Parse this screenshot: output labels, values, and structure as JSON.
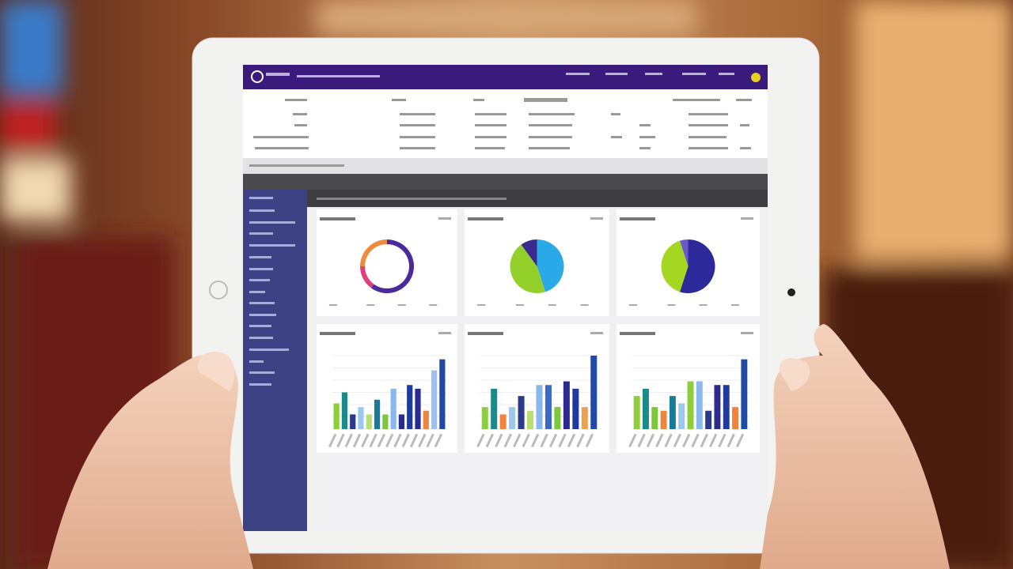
{
  "chart_data": [
    {
      "type": "donut",
      "values": [
        60,
        15,
        25
      ],
      "colors": [
        "#4b2a9e",
        "#e0407a",
        "#f08a3c"
      ]
    },
    {
      "type": "pie",
      "values": [
        45,
        45,
        10
      ],
      "colors": [
        "#2aa9e8",
        "#93d12a",
        "#3a2a8e"
      ]
    },
    {
      "type": "pie",
      "values": [
        55,
        40,
        5
      ],
      "colors": [
        "#2c2a9a",
        "#a4d622",
        "#6a5ac8"
      ]
    },
    {
      "type": "bar",
      "ylim": [
        0,
        100
      ],
      "values": [
        35,
        50,
        20,
        30,
        20,
        40,
        20,
        55,
        20,
        60,
        55,
        25,
        80,
        95
      ],
      "colors": [
        "#8ccf3a",
        "#1a8a8a",
        "#2c3a8e",
        "#9cc8ee",
        "#b8e070",
        "#1a7a9a",
        "#7cc83a",
        "#8ab8ee",
        "#2c2a8e",
        "#1f3a9a",
        "#2c2a8e",
        "#f0843a",
        "#9cc0f0",
        "#1f4aa8"
      ]
    },
    {
      "type": "bar",
      "ylim": [
        0,
        100
      ],
      "values": [
        30,
        55,
        20,
        30,
        45,
        25,
        60,
        60,
        30,
        65,
        55,
        30,
        100
      ],
      "colors": [
        "#8ccf3a",
        "#1a8a8a",
        "#f0843a",
        "#9cc8ee",
        "#2c3a8e",
        "#b8e070",
        "#8ab8ee",
        "#3a6ac8",
        "#7cc83a",
        "#2c2a8e",
        "#1f3a9a",
        "#f0a050",
        "#1f4aa8"
      ]
    },
    {
      "type": "bar",
      "ylim": [
        0,
        100
      ],
      "values": [
        45,
        55,
        30,
        25,
        45,
        35,
        65,
        65,
        25,
        60,
        60,
        30,
        95
      ],
      "colors": [
        "#8ccf3a",
        "#1a8a8a",
        "#7cc83a",
        "#f0843a",
        "#1a7a9a",
        "#9cc8ee",
        "#8ccf3a",
        "#8ab8ee",
        "#2c3a8e",
        "#2c2a8e",
        "#1f3a9a",
        "#f0843a",
        "#1f4aa8"
      ]
    }
  ]
}
